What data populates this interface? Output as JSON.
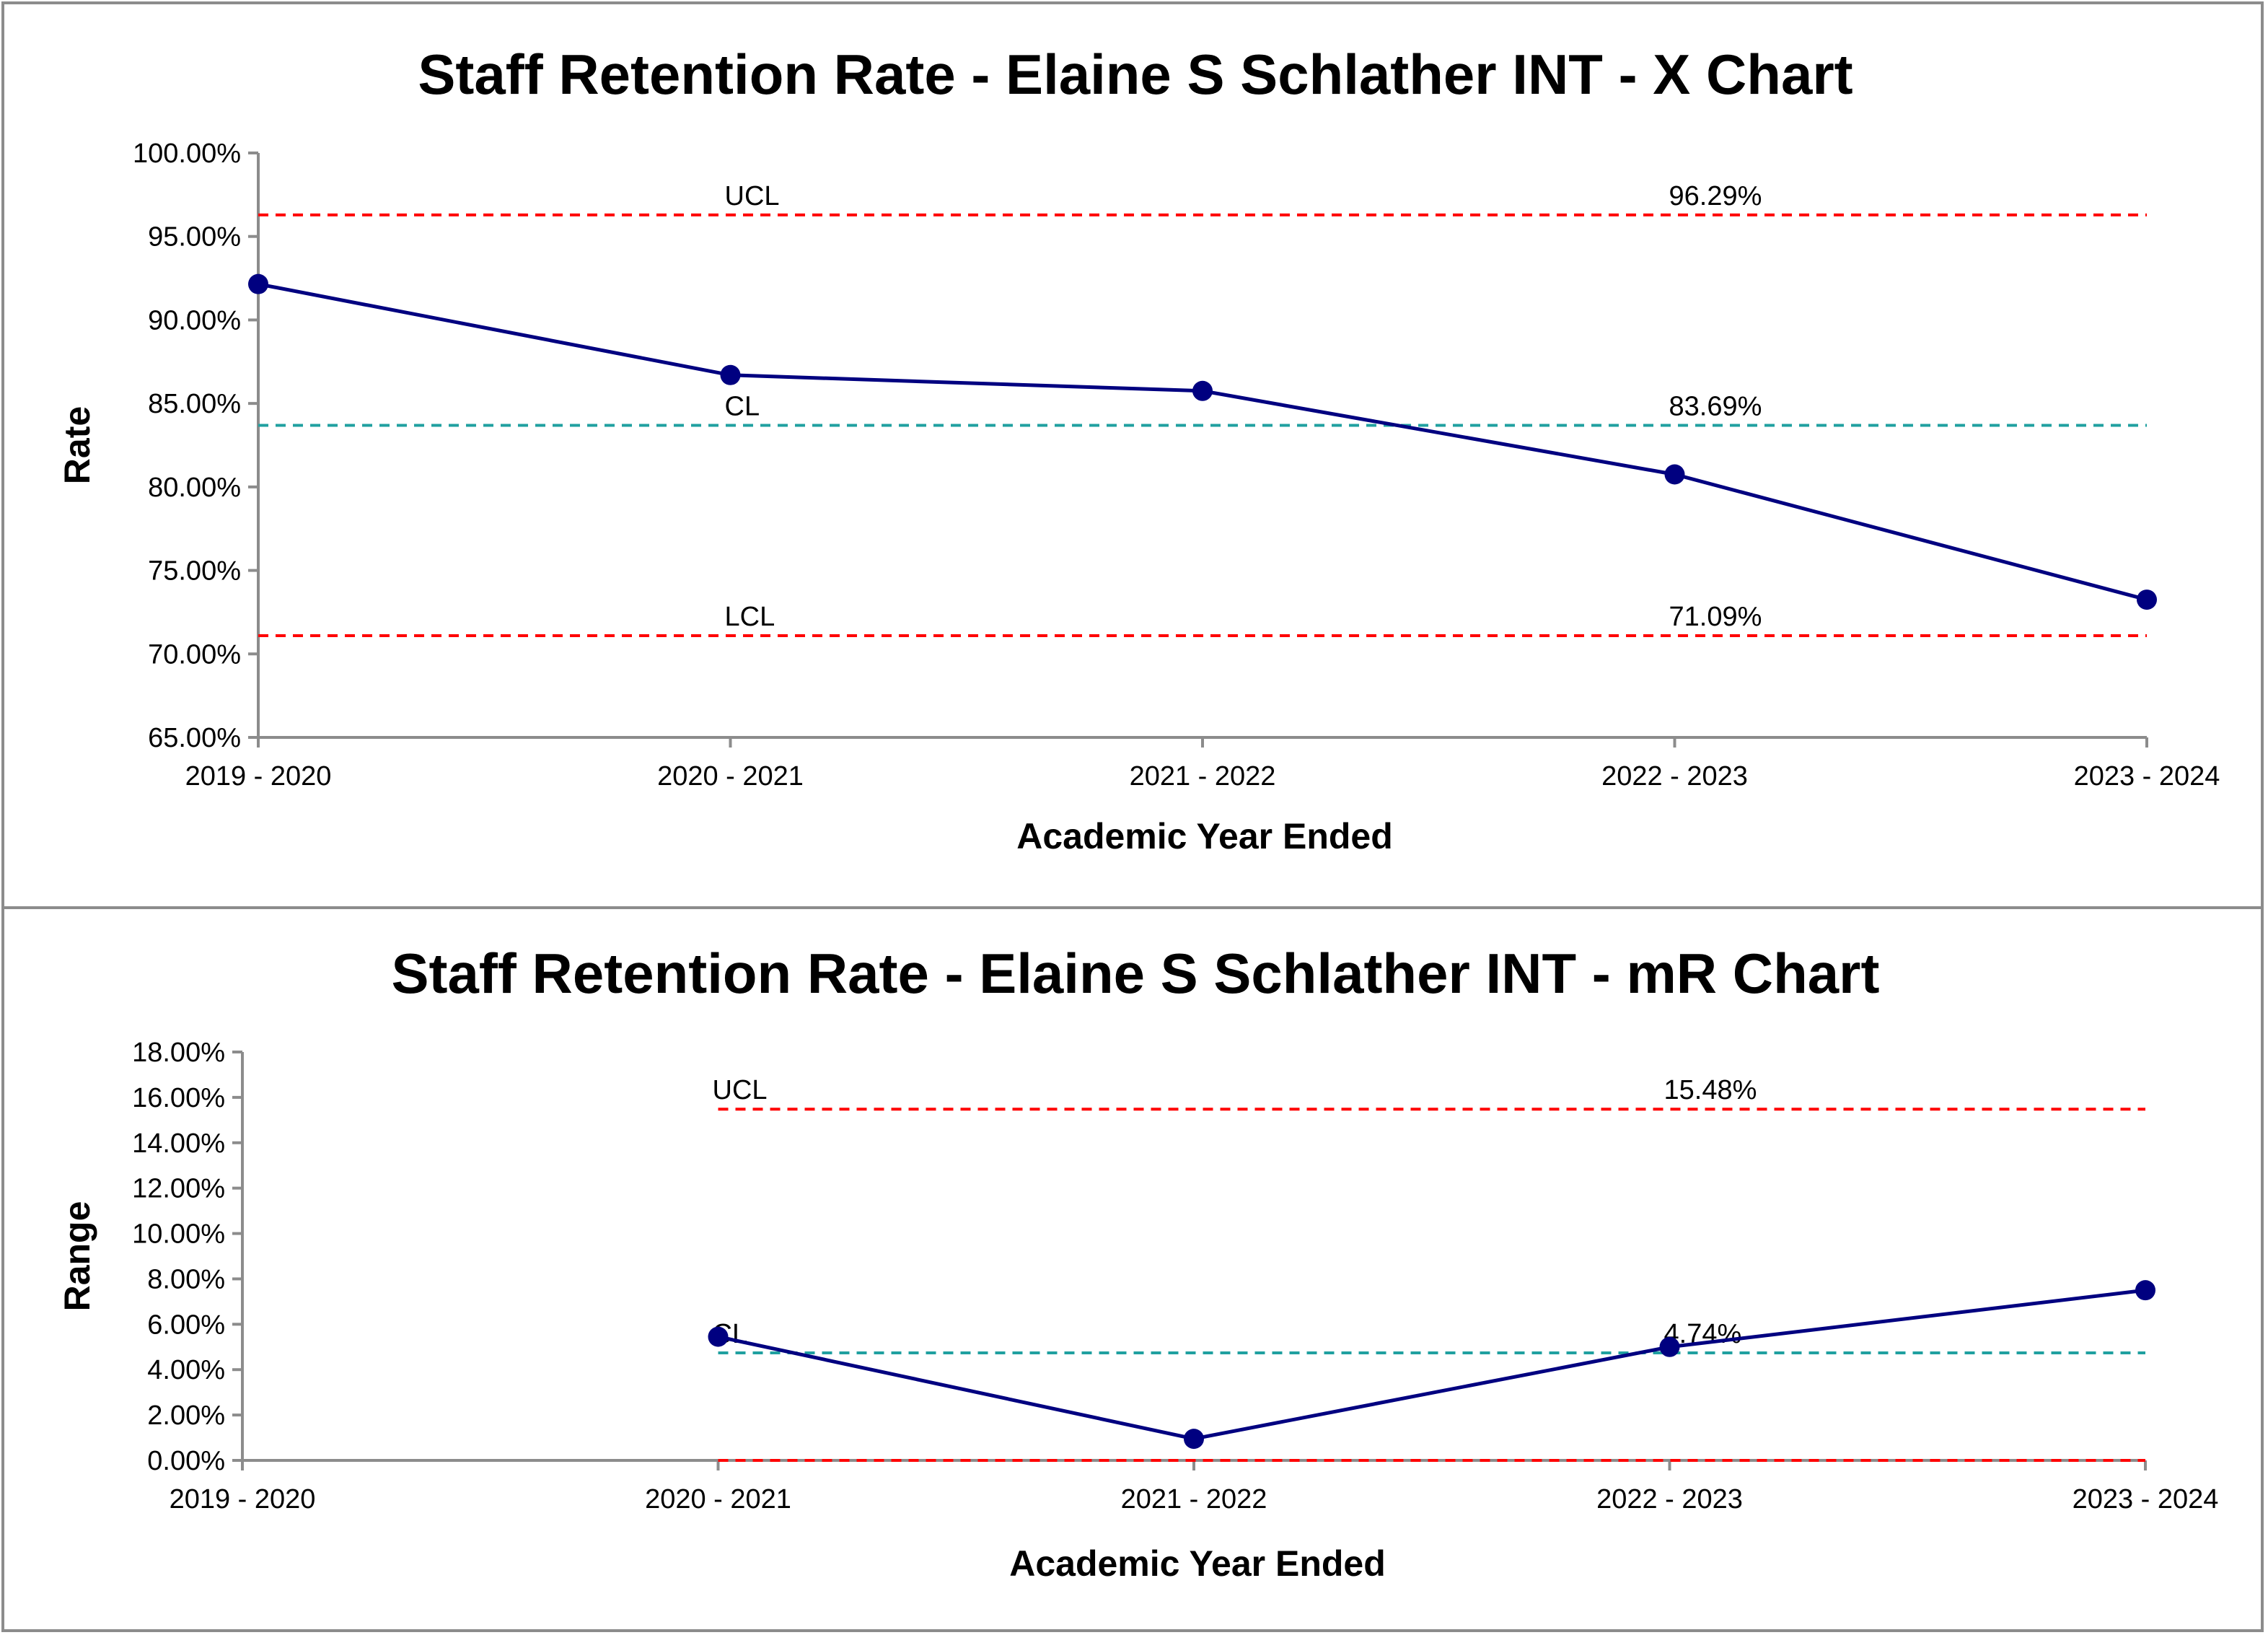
{
  "chart_data": [
    {
      "type": "line",
      "title": "Staff Retention Rate - Elaine S Schlather INT - X Chart",
      "xlabel": "Academic Year Ended",
      "ylabel": "Rate",
      "categories": [
        "2019 - 2020",
        "2020 - 2021",
        "2021 - 2022",
        "2022 - 2023",
        "2023 - 2024"
      ],
      "series": [
        {
          "values": [
            92.15,
            86.7,
            85.75,
            80.75,
            73.25
          ],
          "color": "#000080"
        }
      ],
      "ylim": [
        65,
        100
      ],
      "yticks": [
        "65.00%",
        "70.00%",
        "75.00%",
        "80.00%",
        "85.00%",
        "90.00%",
        "95.00%",
        "100.00%"
      ],
      "control_limits": {
        "ucl": {
          "label": "UCL",
          "value": 96.29,
          "text": "96.29%",
          "color": "#ff0000"
        },
        "cl": {
          "label": "CL",
          "value": 83.69,
          "text": "83.69%",
          "color": "#20a0a0"
        },
        "lcl": {
          "label": "LCL",
          "value": 71.09,
          "text": "71.09%",
          "color": "#ff0000"
        }
      },
      "grid": false
    },
    {
      "type": "line",
      "title": "Staff Retention Rate - Elaine S Schlather INT - mR Chart",
      "xlabel": "Academic Year Ended",
      "ylabel": "Range",
      "categories": [
        "2019 - 2020",
        "2020 - 2021",
        "2021 - 2022",
        "2022 - 2023",
        "2023 - 2024"
      ],
      "series": [
        {
          "values": [
            null,
            5.45,
            0.95,
            5.0,
            7.5
          ],
          "color": "#000080"
        }
      ],
      "ylim": [
        0,
        18
      ],
      "yticks": [
        "0.00%",
        "2.00%",
        "4.00%",
        "6.00%",
        "8.00%",
        "10.00%",
        "12.00%",
        "14.00%",
        "16.00%",
        "18.00%"
      ],
      "control_limits": {
        "ucl": {
          "label": "UCL",
          "value": 15.48,
          "text": "15.48%",
          "color": "#ff0000"
        },
        "cl": {
          "label": "CL",
          "value": 4.74,
          "text": "4.74%",
          "color": "#20a0a0"
        },
        "lcl": {
          "label": "",
          "value": 0,
          "text": "",
          "color": "#ff0000"
        }
      },
      "grid": false
    }
  ]
}
